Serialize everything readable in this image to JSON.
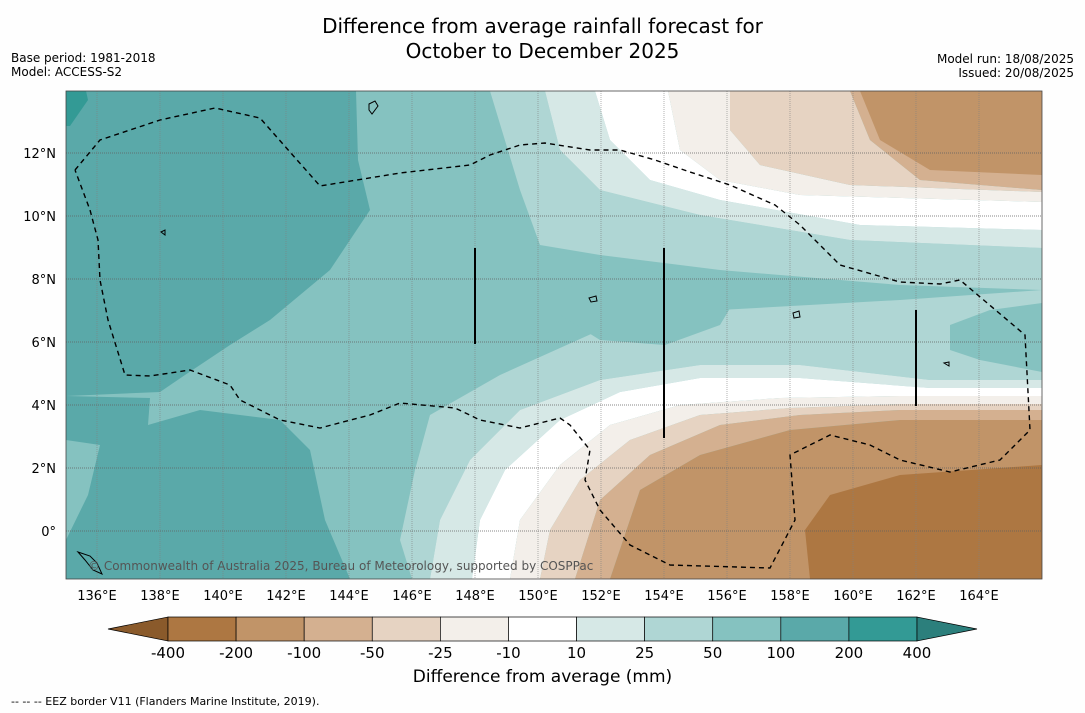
{
  "header": {
    "title_line1": "Difference from average rainfall forecast for",
    "title_line2": "October to December 2025",
    "base_period": "Base period: 1981-2018",
    "model": "Model: ACCESS-S2",
    "model_run": "Model run: 18/08/2025",
    "issued": "Issued: 20/08/2025"
  },
  "map": {
    "copyright": "© Commonwealth of Australia 2025, Bureau of Meteorology, supported by COSPPac",
    "lon_labels": [
      "136°E",
      "138°E",
      "140°E",
      "142°E",
      "144°E",
      "146°E",
      "148°E",
      "150°E",
      "152°E",
      "154°E",
      "156°E",
      "158°E",
      "160°E",
      "162°E",
      "164°E"
    ],
    "lat_labels": [
      "12°N",
      "10°N",
      "8°N",
      "6°N",
      "4°N",
      "2°N",
      "0°"
    ]
  },
  "colorbar": {
    "title": "Difference from average (mm)",
    "ticks": [
      "-400",
      "-200",
      "-100",
      "-50",
      "-25",
      "-10",
      "10",
      "25",
      "50",
      "100",
      "200",
      "400"
    ],
    "colors": [
      "#8a5a2b",
      "#ad7742",
      "#c19468",
      "#d4b090",
      "#e6d3c2",
      "#f3efea",
      "#ffffff",
      "#d6e8e6",
      "#afd6d4",
      "#85c2c0",
      "#5aa9a9",
      "#339a95",
      "#2c7f7c"
    ]
  },
  "footnote": "--  --  -- EEZ border V11 (Flanders Marine Institute, 2019)."
}
